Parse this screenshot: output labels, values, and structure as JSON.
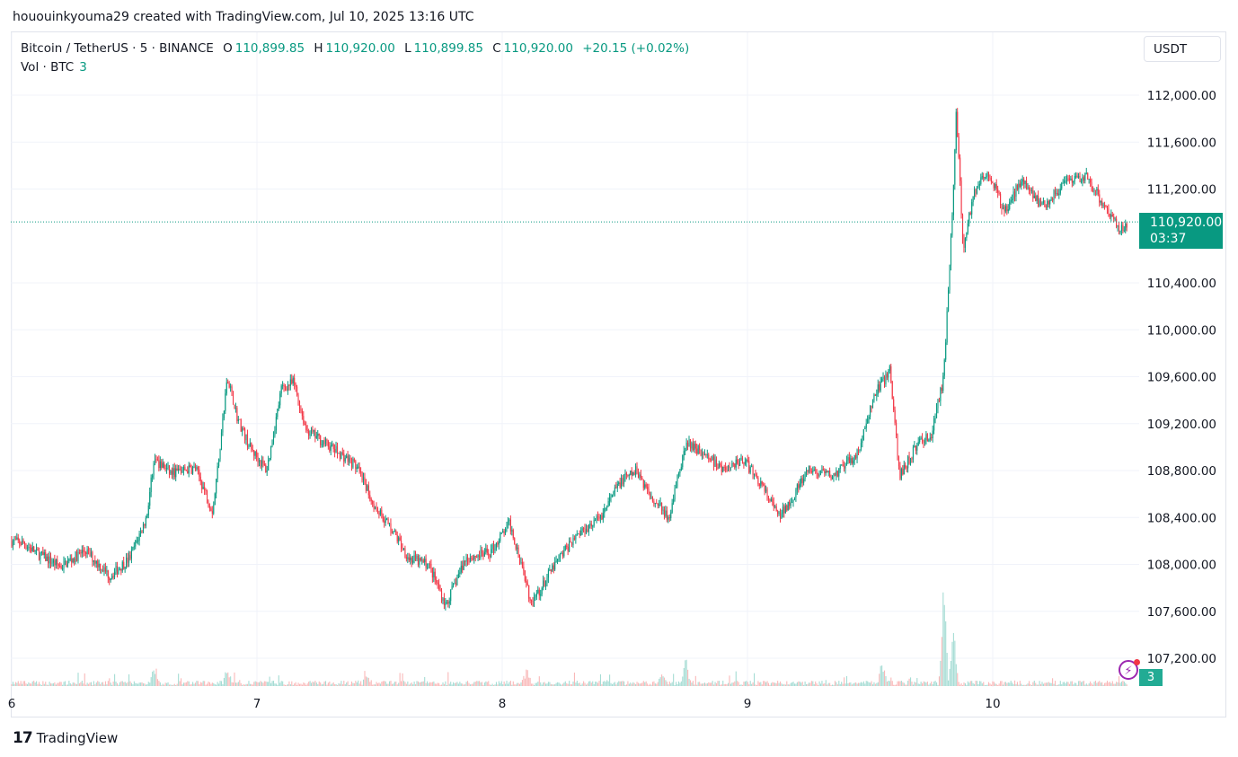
{
  "header": {
    "text": "hououinkyouma29 created with TradingView.com, Jul 10, 2025 13:16 UTC"
  },
  "legend": {
    "symbol": "Bitcoin / TetherUS · 5 · BINANCE",
    "open_label": "O",
    "open": "110,899.85",
    "high_label": "H",
    "high": "110,920.00",
    "low_label": "L",
    "low": "110,899.85",
    "close_label": "C",
    "close": "110,920.00",
    "change": "+20.15 (+0.02%)"
  },
  "volume_legend": {
    "label": "Vol · BTC",
    "value": "3"
  },
  "currency_button": "USDT",
  "price_tag": {
    "price": "110,920.00",
    "countdown": "03:37"
  },
  "volume_tag": "3",
  "footer": {
    "brand": "TradingView",
    "logo": "TV-logo-icon"
  },
  "colors": {
    "up": "#089981",
    "down": "#f23645",
    "up_vol": "#a5dcd4",
    "down_vol": "#f9b8b8"
  },
  "chart_data": {
    "type": "candlestick",
    "title": "Bitcoin / TetherUS · 5 · BINANCE",
    "x_ticks": [
      "6",
      "7",
      "8",
      "9",
      "10"
    ],
    "y_ticks": [
      "112,000.00",
      "111,600.00",
      "111,200.00",
      "110,400.00",
      "110,000.00",
      "109,600.00",
      "109,200.00",
      "108,800.00",
      "108,400.00",
      "108,000.00",
      "107,600.00",
      "107,200.00"
    ],
    "y_tick_values": [
      112000,
      111600,
      111200,
      110400,
      110000,
      109600,
      109200,
      108800,
      108400,
      108000,
      107600,
      107200
    ],
    "ylim": [
      106950,
      112550
    ],
    "xlim_days": [
      6.0,
      10.58
    ],
    "last_price": 110920,
    "price_path": [
      [
        6.0,
        108200
      ],
      [
        6.05,
        108180
      ],
      [
        6.1,
        108100
      ],
      [
        6.2,
        107980
      ],
      [
        6.3,
        108120
      ],
      [
        6.4,
        107900
      ],
      [
        6.48,
        108050
      ],
      [
        6.55,
        108400
      ],
      [
        6.58,
        108900
      ],
      [
        6.65,
        108780
      ],
      [
        6.75,
        108820
      ],
      [
        6.82,
        108450
      ],
      [
        6.88,
        109600
      ],
      [
        6.92,
        109250
      ],
      [
        6.97,
        109000
      ],
      [
        7.04,
        108800
      ],
      [
        7.1,
        109500
      ],
      [
        7.15,
        109550
      ],
      [
        7.2,
        109150
      ],
      [
        7.3,
        109000
      ],
      [
        7.4,
        108850
      ],
      [
        7.48,
        108500
      ],
      [
        7.55,
        108300
      ],
      [
        7.62,
        108050
      ],
      [
        7.7,
        108000
      ],
      [
        7.77,
        107650
      ],
      [
        7.85,
        108050
      ],
      [
        7.95,
        108100
      ],
      [
        8.03,
        108350
      ],
      [
        8.08,
        108000
      ],
      [
        8.12,
        107650
      ],
      [
        8.2,
        107950
      ],
      [
        8.3,
        108250
      ],
      [
        8.4,
        108400
      ],
      [
        8.48,
        108700
      ],
      [
        8.55,
        108800
      ],
      [
        8.6,
        108600
      ],
      [
        8.68,
        108400
      ],
      [
        8.75,
        109050
      ],
      [
        8.82,
        108950
      ],
      [
        8.9,
        108800
      ],
      [
        8.98,
        108900
      ],
      [
        9.05,
        108700
      ],
      [
        9.13,
        108400
      ],
      [
        9.25,
        108800
      ],
      [
        9.35,
        108750
      ],
      [
        9.45,
        108950
      ],
      [
        9.52,
        109450
      ],
      [
        9.58,
        109650
      ],
      [
        9.62,
        108750
      ],
      [
        9.7,
        109050
      ],
      [
        9.75,
        109100
      ],
      [
        9.8,
        109600
      ],
      [
        9.84,
        111200
      ],
      [
        9.85,
        111880
      ],
      [
        9.88,
        110700
      ],
      [
        9.92,
        111150
      ],
      [
        9.98,
        111350
      ],
      [
        10.05,
        111000
      ],
      [
        10.12,
        111300
      ],
      [
        10.2,
        111050
      ],
      [
        10.3,
        111250
      ],
      [
        10.38,
        111300
      ],
      [
        10.46,
        111050
      ],
      [
        10.52,
        110850
      ],
      [
        10.55,
        110920
      ]
    ],
    "volume_series": {
      "name": "Vol · BTC",
      "last": 3,
      "spikes": [
        [
          6.58,
          18
        ],
        [
          6.88,
          17
        ],
        [
          7.45,
          12
        ],
        [
          8.1,
          20
        ],
        [
          8.65,
          16
        ],
        [
          8.75,
          30
        ],
        [
          9.55,
          30
        ],
        [
          9.8,
          135
        ],
        [
          9.84,
          85
        ]
      ]
    }
  }
}
